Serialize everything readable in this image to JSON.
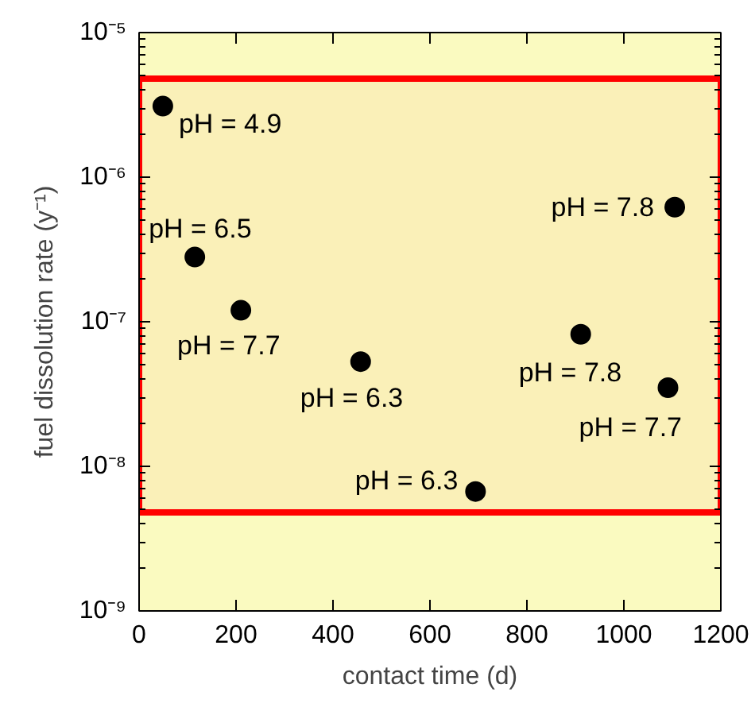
{
  "chart_data": {
    "type": "scatter",
    "xlabel": "contact time (d)",
    "ylabel": "fuel dissolution rate (y⁻¹)",
    "log": "y",
    "x": [
      49,
      115,
      210,
      457,
      694,
      911,
      1091,
      1105
    ],
    "series": [
      {
        "color": "#000000",
        "values": [
          3.1e-06,
          2.8e-07,
          1.2e-07,
          5.3e-08,
          6.7e-09,
          8.2e-08,
          3.5e-08,
          6.2e-07
        ]
      }
    ],
    "marker": "circle",
    "xlim": [
      0,
      1200
    ],
    "xticks": [
      0,
      200,
      400,
      600,
      800,
      1000,
      1200
    ],
    "ylim": [
      1e-09,
      1e-05
    ],
    "yticks": [
      {
        "value": 1e-09,
        "label": "10⁻⁹"
      },
      {
        "value": 1e-08,
        "label": "10⁻⁸"
      },
      {
        "value": 1e-07,
        "label": "10⁻⁷"
      },
      {
        "value": 1e-06,
        "label": "10⁻⁶"
      },
      {
        "value": 1e-05,
        "label": "10⁻⁵"
      }
    ],
    "grid": false,
    "bands": [
      {
        "axis": "y",
        "from": 4.8e-09,
        "to": 4.8e-06,
        "color": "#ff0000"
      }
    ],
    "annotations": [
      {
        "text": "pH = 4.9",
        "x": 49,
        "y": 3.1e-06
      },
      {
        "text": "pH = 6.5",
        "x": 115,
        "y": 2.8e-07
      },
      {
        "text": "pH = 7.7",
        "x": 210,
        "y": 1.2e-07
      },
      {
        "text": "pH = 6.3",
        "x": 457,
        "y": 5.3e-08
      },
      {
        "text": "pH = 6.3",
        "x": 694,
        "y": 6.7e-09
      },
      {
        "text": "pH = 7.8",
        "x": 911,
        "y": 8.2e-08
      },
      {
        "text": "pH = 7.7",
        "x": 1091,
        "y": 3.5e-08
      },
      {
        "text": "pH = 7.8",
        "x": 1105,
        "y": 6.2e-07
      }
    ]
  }
}
